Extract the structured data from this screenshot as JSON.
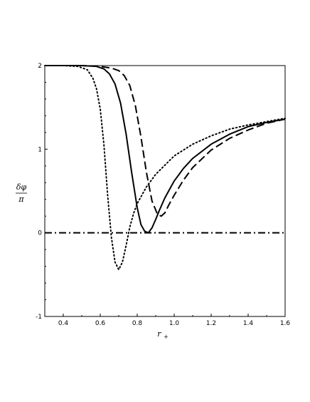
{
  "chart_data": {
    "type": "line",
    "title": "",
    "xlabel": "r",
    "xlabel_subscript": "+",
    "ylabel_numerator": "δφ",
    "ylabel_denominator": "π",
    "xlim": [
      0.3,
      1.6
    ],
    "ylim": [
      -1,
      2
    ],
    "x_ticks": [
      "0.4",
      "0.6",
      "0.8",
      "1.0",
      "1.2",
      "1.4",
      "1.6"
    ],
    "y_ticks": [
      "-1",
      "0",
      "1",
      "2"
    ],
    "grid": false,
    "legend": "none",
    "series": [
      {
        "style": "dotted",
        "color": "#000000",
        "x": [
          0.3,
          0.4,
          0.48,
          0.53,
          0.56,
          0.58,
          0.6,
          0.62,
          0.64,
          0.66,
          0.68,
          0.7,
          0.72,
          0.74,
          0.76,
          0.78,
          0.8,
          0.85,
          0.9,
          1.0,
          1.1,
          1.2,
          1.3,
          1.4,
          1.5,
          1.6
        ],
        "y": [
          2.0,
          2.0,
          1.99,
          1.95,
          1.85,
          1.72,
          1.48,
          1.05,
          0.45,
          -0.05,
          -0.35,
          -0.44,
          -0.35,
          -0.15,
          0.07,
          0.23,
          0.35,
          0.55,
          0.7,
          0.92,
          1.06,
          1.16,
          1.24,
          1.29,
          1.33,
          1.37
        ]
      },
      {
        "style": "solid",
        "color": "#000000",
        "x": [
          0.3,
          0.5,
          0.58,
          0.62,
          0.65,
          0.68,
          0.71,
          0.74,
          0.77,
          0.8,
          0.82,
          0.84,
          0.86,
          0.88,
          0.9,
          0.92,
          0.95,
          1.0,
          1.05,
          1.1,
          1.2,
          1.3,
          1.4,
          1.5,
          1.6
        ],
        "y": [
          2.0,
          2.0,
          1.99,
          1.96,
          1.9,
          1.78,
          1.55,
          1.18,
          0.72,
          0.3,
          0.1,
          0.02,
          0.0,
          0.06,
          0.16,
          0.27,
          0.42,
          0.62,
          0.77,
          0.89,
          1.06,
          1.18,
          1.27,
          1.32,
          1.36
        ]
      },
      {
        "style": "dashed",
        "color": "#000000",
        "x": [
          0.3,
          0.5,
          0.6,
          0.66,
          0.7,
          0.73,
          0.76,
          0.79,
          0.82,
          0.85,
          0.88,
          0.91,
          0.93,
          0.95,
          0.97,
          1.0,
          1.05,
          1.1,
          1.2,
          1.3,
          1.4,
          1.5,
          1.6
        ],
        "y": [
          2.0,
          2.0,
          1.99,
          1.97,
          1.94,
          1.88,
          1.76,
          1.52,
          1.15,
          0.72,
          0.38,
          0.22,
          0.2,
          0.24,
          0.33,
          0.45,
          0.63,
          0.78,
          0.99,
          1.13,
          1.23,
          1.31,
          1.36
        ]
      },
      {
        "style": "dashdot",
        "color": "#000000",
        "x": [
          0.3,
          1.6
        ],
        "y": [
          0,
          0
        ]
      }
    ]
  }
}
